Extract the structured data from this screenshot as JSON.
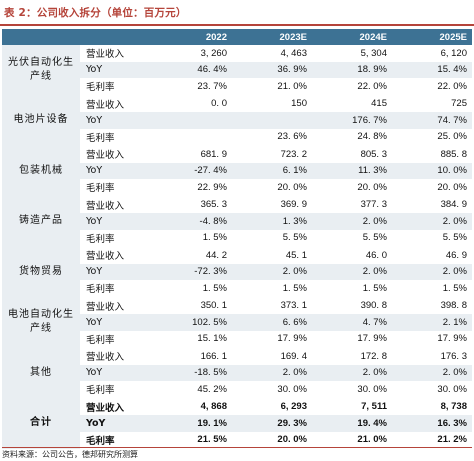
{
  "title": "表 2：公司收入拆分（单位：百万元）",
  "header": [
    "",
    "",
    "2022",
    "2023E",
    "2024E",
    "2025E"
  ],
  "groups": [
    {
      "name": "光伏自动化生产线",
      "rows": [
        {
          "metric": "营业收入",
          "values": [
            "3, 260",
            "4, 463",
            "5, 304",
            "6, 120"
          ]
        },
        {
          "metric": "YoY",
          "values": [
            "46. 4%",
            "36. 9%",
            "18. 9%",
            "15. 4%"
          ]
        },
        {
          "metric": "毛利率",
          "values": [
            "23. 7%",
            "21. 0%",
            "22. 0%",
            "22. 0%"
          ]
        }
      ]
    },
    {
      "name": "电池片设备",
      "rows": [
        {
          "metric": "营业收入",
          "values": [
            "0. 0",
            "150",
            "415",
            "725"
          ]
        },
        {
          "metric": "YoY",
          "values": [
            "",
            "",
            "176. 7%",
            "74. 7%"
          ]
        },
        {
          "metric": "毛利率",
          "values": [
            "",
            "23. 6%",
            "24. 8%",
            "25. 0%"
          ]
        }
      ]
    },
    {
      "name": "包装机械",
      "rows": [
        {
          "metric": "营业收入",
          "values": [
            "681. 9",
            "723. 2",
            "805. 3",
            "885. 8"
          ]
        },
        {
          "metric": "YoY",
          "values": [
            "-27. 4%",
            "6. 1%",
            "11. 3%",
            "10. 0%"
          ]
        },
        {
          "metric": "毛利率",
          "values": [
            "22. 9%",
            "20. 0%",
            "20. 0%",
            "20. 0%"
          ]
        }
      ]
    },
    {
      "name": "铸造产品",
      "rows": [
        {
          "metric": "营业收入",
          "values": [
            "365. 3",
            "369. 9",
            "377. 3",
            "384. 9"
          ]
        },
        {
          "metric": "YoY",
          "values": [
            "-4. 8%",
            "1. 3%",
            "2. 0%",
            "2. 0%"
          ]
        },
        {
          "metric": "毛利率",
          "values": [
            "1. 5%",
            "5. 5%",
            "5. 5%",
            "5. 5%"
          ]
        }
      ]
    },
    {
      "name": "货物贸易",
      "rows": [
        {
          "metric": "营业收入",
          "values": [
            "44. 2",
            "45. 1",
            "46. 0",
            "46. 9"
          ]
        },
        {
          "metric": "YoY",
          "values": [
            "-72. 3%",
            "2. 0%",
            "2. 0%",
            "2. 0%"
          ]
        },
        {
          "metric": "毛利率",
          "values": [
            "1. 5%",
            "1. 5%",
            "1. 5%",
            "1. 5%"
          ]
        }
      ]
    },
    {
      "name": "电池自动化生产线",
      "rows": [
        {
          "metric": "营业收入",
          "values": [
            "350. 1",
            "373. 1",
            "390. 8",
            "398. 8"
          ]
        },
        {
          "metric": "YoY",
          "values": [
            "102. 5%",
            "6. 6%",
            "4. 7%",
            "2. 1%"
          ]
        },
        {
          "metric": "毛利率",
          "values": [
            "15. 1%",
            "17. 9%",
            "17. 9%",
            "17. 9%"
          ]
        }
      ]
    },
    {
      "name": "其他",
      "rows": [
        {
          "metric": "营业收入",
          "values": [
            "166. 1",
            "169. 4",
            "172. 8",
            "176. 3"
          ]
        },
        {
          "metric": "YoY",
          "values": [
            "-18. 5%",
            "2. 0%",
            "2. 0%",
            "2. 0%"
          ]
        },
        {
          "metric": "毛利率",
          "values": [
            "45. 2%",
            "30. 0%",
            "30. 0%",
            "30. 0%"
          ]
        }
      ]
    },
    {
      "name": "合计",
      "rows": [
        {
          "metric": "营业收入",
          "values": [
            "4, 868",
            "6, 293",
            "7, 511",
            "8, 738"
          ]
        },
        {
          "metric": "YoY",
          "values": [
            "19. 1%",
            "29. 3%",
            "19. 4%",
            "16. 3%"
          ]
        },
        {
          "metric": "毛利率",
          "values": [
            "21. 5%",
            "20. 0%",
            "21. 0%",
            "21. 2%"
          ]
        }
      ]
    }
  ],
  "source": "资料来源：公司公告，德邦研究所测算",
  "colors": {
    "accent": "#b5443a",
    "header_bg": "#3d7294",
    "stripe": "#e9eef2"
  }
}
